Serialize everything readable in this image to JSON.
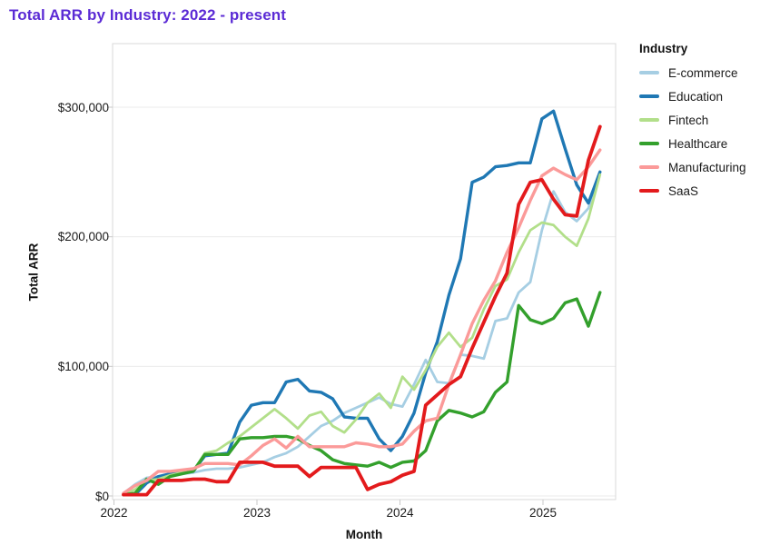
{
  "page": {
    "background": "#ffffff"
  },
  "chart_data": {
    "type": "line",
    "title": "Total ARR by Industry: 2022 - present",
    "title_color": "#5B2BD5",
    "xlabel": "Month",
    "ylabel": "Total ARR",
    "x_tick_labels": [
      "2022",
      "2023",
      "2024",
      "2025"
    ],
    "y_tick_labels": [
      "$0",
      "$100,000",
      "$200,000",
      "$300,000"
    ],
    "y_ticks": [
      0,
      100000,
      200000,
      300000
    ],
    "ylim": [
      0,
      349000
    ],
    "grid": "horizontal-faint",
    "legend": {
      "title": "Industry",
      "position": "right"
    },
    "x": {
      "unit": "month",
      "months": [
        "2022-01",
        "2022-02",
        "2022-03",
        "2022-04",
        "2022-05",
        "2022-06",
        "2022-07",
        "2022-08",
        "2022-09",
        "2022-10",
        "2022-11",
        "2022-12",
        "2023-01",
        "2023-02",
        "2023-03",
        "2023-04",
        "2023-05",
        "2023-06",
        "2023-07",
        "2023-08",
        "2023-09",
        "2023-10",
        "2023-11",
        "2023-12",
        "2024-01",
        "2024-02",
        "2024-03",
        "2024-04",
        "2024-05",
        "2024-06",
        "2024-07",
        "2024-08",
        "2024-09",
        "2024-10",
        "2024-11",
        "2024-12",
        "2025-01",
        "2025-02",
        "2025-03",
        "2025-04",
        "2025-05",
        "2025-06"
      ]
    },
    "series": [
      {
        "name": "E-commerce",
        "color": "#a6cee3",
        "values": [
          2000,
          9000,
          14000,
          15000,
          16000,
          17000,
          18000,
          20000,
          21000,
          21000,
          22000,
          24000,
          26000,
          30000,
          33000,
          38000,
          46000,
          54000,
          58000,
          64000,
          68000,
          72000,
          76000,
          71000,
          69000,
          86000,
          105000,
          88000,
          87000,
          109000,
          108000,
          106000,
          135000,
          137000,
          157000,
          165000,
          205000,
          235000,
          219000,
          212000,
          222000,
          250000
        ]
      },
      {
        "name": "Education",
        "color": "#1f78b4",
        "values": [
          1000,
          1000,
          10000,
          15000,
          17000,
          18000,
          19000,
          31000,
          32000,
          33000,
          57000,
          70000,
          72000,
          72000,
          88000,
          90000,
          81000,
          80000,
          75000,
          61000,
          60000,
          60000,
          44000,
          35000,
          46000,
          64000,
          95000,
          119000,
          155000,
          183000,
          242000,
          246000,
          254000,
          255000,
          257000,
          257000,
          291000,
          297000,
          268000,
          240000,
          226000,
          250000
        ]
      },
      {
        "name": "Fintech",
        "color": "#b2df8a",
        "values": [
          1000,
          5000,
          12000,
          13000,
          16000,
          18000,
          19000,
          33000,
          35000,
          41000,
          46000,
          53000,
          60000,
          67000,
          60000,
          52000,
          62000,
          65000,
          54000,
          49000,
          59000,
          72000,
          79000,
          68000,
          92000,
          82000,
          97000,
          115000,
          126000,
          115000,
          122000,
          144000,
          162000,
          167000,
          188000,
          205000,
          211000,
          209000,
          200000,
          193000,
          214000,
          248000
        ]
      },
      {
        "name": "Healthcare",
        "color": "#33a02c",
        "values": [
          1000,
          2000,
          13000,
          9000,
          15000,
          17000,
          19000,
          32000,
          32000,
          32000,
          44000,
          45000,
          45000,
          46000,
          46000,
          44000,
          39000,
          35000,
          28000,
          25000,
          24000,
          23000,
          26000,
          22000,
          26000,
          27000,
          35000,
          58000,
          66000,
          64000,
          61000,
          65000,
          80000,
          88000,
          147000,
          136000,
          133000,
          137000,
          149000,
          152000,
          131000,
          157000
        ]
      },
      {
        "name": "Manufacturing",
        "color": "#fb9a99",
        "values": [
          2000,
          8000,
          12000,
          19000,
          19000,
          20000,
          21000,
          25000,
          25000,
          25000,
          24000,
          31000,
          39000,
          44000,
          37000,
          46000,
          38000,
          38000,
          38000,
          38000,
          41000,
          40000,
          38000,
          38000,
          40000,
          50000,
          58000,
          60000,
          86000,
          109000,
          133000,
          151000,
          166000,
          188000,
          207000,
          228000,
          247000,
          253000,
          248000,
          244000,
          254000,
          267000
        ]
      },
      {
        "name": "SaaS",
        "color": "#e31a1c",
        "values": [
          1000,
          1000,
          1000,
          12000,
          12000,
          12000,
          13000,
          13000,
          11000,
          11000,
          26000,
          26000,
          26000,
          23000,
          23000,
          23000,
          15000,
          22000,
          22000,
          22000,
          22000,
          5000,
          9000,
          11000,
          16000,
          19000,
          70000,
          78000,
          86000,
          92000,
          114000,
          134000,
          154000,
          172000,
          225000,
          242000,
          244000,
          229000,
          217000,
          216000,
          259000,
          285000
        ]
      }
    ]
  }
}
